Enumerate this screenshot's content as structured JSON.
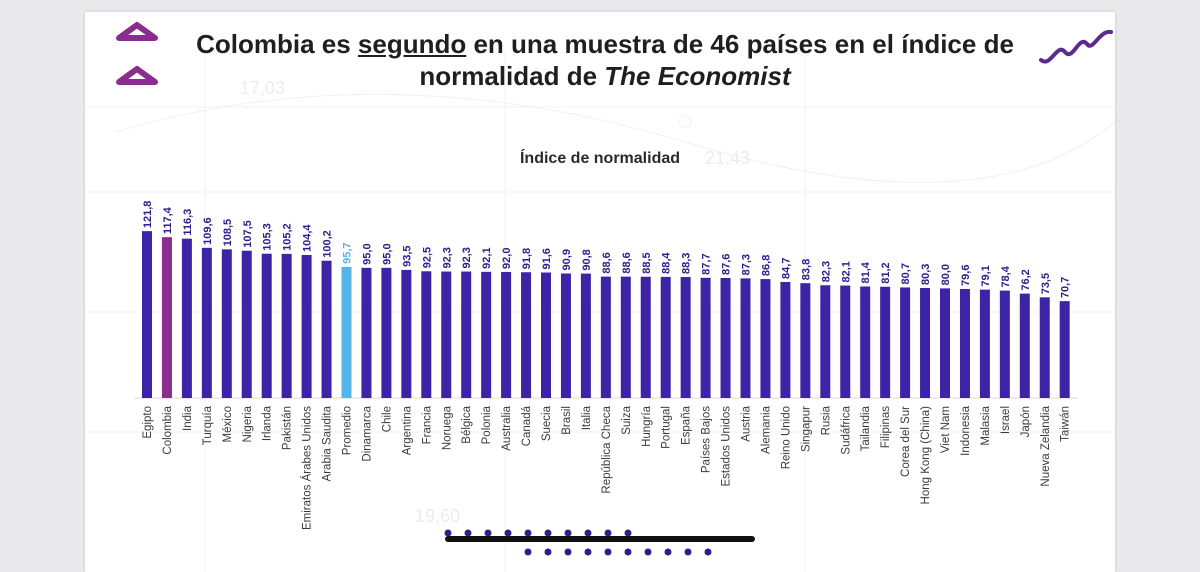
{
  "slide": {
    "title_part1": "Colombia es ",
    "title_emph": "segundo",
    "title_part2": " en una muestra de 46 países en el índice de",
    "title_line2": "normalidad de ",
    "title_italic": "The Economist",
    "bg_numbers": [
      "17,03",
      "21,43",
      "19,60"
    ]
  },
  "colors": {
    "bar": "#3d24a6",
    "highlight": "#8b2d8f",
    "average": "#55b4e8",
    "value_text": "#2d1e8c",
    "average_text": "#55b4e8",
    "accent": "#8b2d8f",
    "dots": "#2d1e8c"
  },
  "chart_data": {
    "type": "bar",
    "title": "Índice de normalidad",
    "xlabel": "",
    "ylabel": "",
    "ylim": [
      0,
      125
    ],
    "categories": [
      "Egipto",
      "Colombia",
      "India",
      "Turquía",
      "México",
      "Nigeria",
      "Irlanda",
      "Pakistán",
      "Emiratos Árabes Unidos",
      "Arabia Saudita",
      "Promedio",
      "Dinamarca",
      "Chile",
      "Argentina",
      "Francia",
      "Noruega",
      "Bélgica",
      "Polonia",
      "Australia",
      "Canadá",
      "Suecia",
      "Brasil",
      "Italia",
      "República Checa",
      "Suiza",
      "Hungría",
      "Portugal",
      "España",
      "Países Bajos",
      "Estados Unidos",
      "Austria",
      "Alemania",
      "Reino Unido",
      "Singapur",
      "Rusia",
      "Sudáfrica",
      "Tailandia",
      "Filipinas",
      "Corea del Sur",
      "Hong Kong (China)",
      "Viet Nam",
      "Indonesia",
      "Malasia",
      "Israel",
      "Japón",
      "Nueva Zelandia",
      "Taiwán"
    ],
    "values": [
      121.8,
      117.4,
      116.3,
      109.6,
      108.5,
      107.5,
      105.3,
      105.2,
      104.4,
      100.2,
      95.7,
      95.0,
      95.0,
      93.5,
      92.5,
      92.3,
      92.3,
      92.1,
      92.0,
      91.8,
      91.6,
      90.9,
      90.8,
      88.6,
      88.6,
      88.5,
      88.4,
      88.3,
      87.7,
      87.6,
      87.3,
      86.8,
      84.7,
      83.8,
      82.3,
      82.1,
      81.4,
      81.2,
      80.7,
      80.3,
      80.0,
      79.6,
      79.1,
      78.4,
      76.2,
      73.5,
      70.7
    ],
    "labels": [
      "121,8",
      "117,4",
      "116,3",
      "109,6",
      "108,5",
      "107,5",
      "105,3",
      "105,2",
      "104,4",
      "100,2",
      "95,7",
      "95,0",
      "95,0",
      "93,5",
      "92,5",
      "92,3",
      "92,3",
      "92,1",
      "92,0",
      "91,8",
      "91,6",
      "90,9",
      "90,8",
      "88,6",
      "88,6",
      "88,5",
      "88,4",
      "88,3",
      "87,7",
      "87,6",
      "87,3",
      "86,8",
      "84,7",
      "83,8",
      "82,3",
      "82,1",
      "81,4",
      "81,2",
      "80,7",
      "80,3",
      "80,0",
      "79,6",
      "79,1",
      "78,4",
      "76,2",
      "73,5",
      "70,7"
    ],
    "highlight_category": "Colombia",
    "average_category": "Promedio"
  }
}
